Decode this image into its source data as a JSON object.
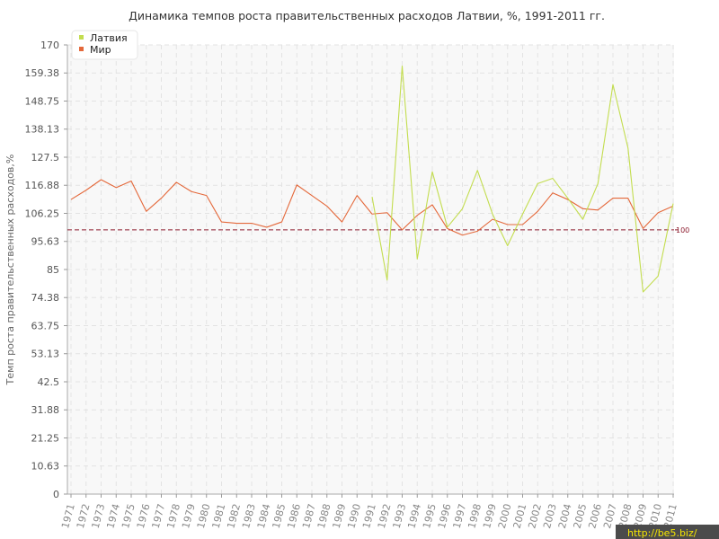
{
  "chart_data": {
    "type": "line",
    "title": "Динамика темпов роста правительственных расходов Латвии, %, 1991-2011 гг.",
    "xlabel": "",
    "ylabel": "Темп роста правительственных расходов,%",
    "ylim": [
      0,
      170
    ],
    "yticks": [
      "0",
      "10.63",
      "21.25",
      "31.88",
      "42.5",
      "53.13",
      "63.75",
      "74.38",
      "85",
      "95.63",
      "106.25",
      "116.88",
      "127.5",
      "138.13",
      "148.75",
      "159.38",
      "170"
    ],
    "x": [
      "1971",
      "1972",
      "1973",
      "1974",
      "1975",
      "1976",
      "1977",
      "1978",
      "1979",
      "1980",
      "1981",
      "1982",
      "1983",
      "1984",
      "1985",
      "1986",
      "1987",
      "1988",
      "1989",
      "1990",
      "1991",
      "1992",
      "1993",
      "1994",
      "1995",
      "1996",
      "1997",
      "1998",
      "1999",
      "2000",
      "2001",
      "2002",
      "2003",
      "2004",
      "2005",
      "2006",
      "2007",
      "2008",
      "2009",
      "2010",
      "2011"
    ],
    "series": [
      {
        "name": "Латвия",
        "color": "#c3dd4f",
        "values": [
          null,
          null,
          null,
          null,
          null,
          null,
          null,
          null,
          null,
          null,
          null,
          null,
          null,
          null,
          null,
          null,
          null,
          null,
          null,
          null,
          112.5,
          81,
          162,
          89,
          122,
          101,
          108,
          122.5,
          106,
          94,
          106,
          117.5,
          119.5,
          112,
          104,
          117.5,
          155,
          131,
          76.5,
          82.5,
          110
        ]
      },
      {
        "name": "Мир",
        "color": "#e4683a",
        "values": [
          111.5,
          115,
          119,
          116,
          118.5,
          107,
          112,
          118,
          114.5,
          113,
          103,
          102.5,
          102.5,
          101,
          103,
          117,
          113,
          109,
          103,
          113,
          106,
          106.5,
          100,
          105.5,
          109.5,
          100.5,
          98,
          99.5,
          104,
          102,
          102,
          107,
          114,
          111.5,
          108,
          107.5,
          112,
          112,
          100.5,
          106.5,
          109
        ]
      }
    ],
    "reference_line": {
      "value": 100,
      "label": "100",
      "color": "#8b1a2c"
    },
    "legend_position": "top-left",
    "grid": true
  },
  "watermark": "http://be5.biz/"
}
